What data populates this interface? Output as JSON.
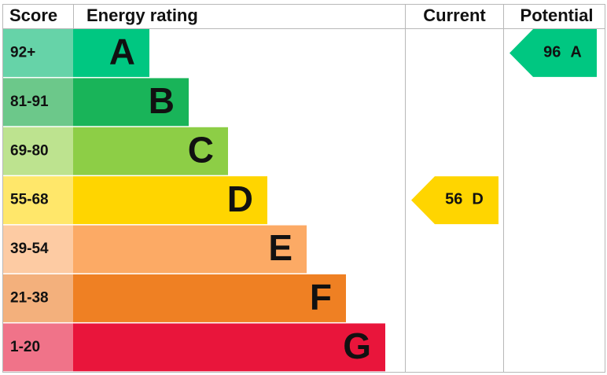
{
  "header": {
    "score": "Score",
    "rating": "Energy rating",
    "current": "Current",
    "potential": "Potential"
  },
  "bands": [
    {
      "score": "92+",
      "letter": "A",
      "color": "#00c781",
      "light": "#66d3a8"
    },
    {
      "score": "81-91",
      "letter": "B",
      "color": "#19b459",
      "light": "#6cc88a"
    },
    {
      "score": "69-80",
      "letter": "C",
      "color": "#8dce46",
      "light": "#bde38f"
    },
    {
      "score": "55-68",
      "letter": "D",
      "color": "#ffd500",
      "light": "#ffe76a"
    },
    {
      "score": "39-54",
      "letter": "E",
      "color": "#fcaa65",
      "light": "#fdcba3"
    },
    {
      "score": "21-38",
      "letter": "F",
      "color": "#ef8023",
      "light": "#f3b07c"
    },
    {
      "score": "1-20",
      "letter": "G",
      "color": "#e9153b",
      "light": "#f07389"
    }
  ],
  "current": {
    "score": 56,
    "rating": "D"
  },
  "potential": {
    "score": 96,
    "rating": "A"
  }
}
